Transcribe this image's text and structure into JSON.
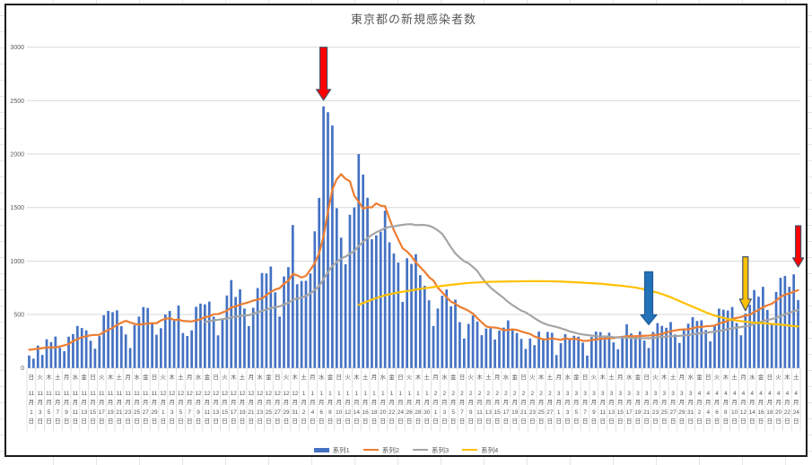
{
  "chart_data": {
    "type": "combo",
    "title": "東京都の新規感染者数",
    "legend_position": "bottom",
    "grid": true,
    "y_axis": {
      "min": 0,
      "max": 3000,
      "step": 500,
      "tick_labels": [
        "0",
        "500",
        "1000",
        "1500",
        "2000",
        "2500",
        "3000"
      ]
    },
    "x_axis": {
      "description": "daily categories 2020-11-01 through 2021-04-25, tick label every 2nd day",
      "month_suffix": "月",
      "day_suffix": "日",
      "labels": [
        [
          "日",
          11,
          1
        ],
        [
          "火",
          11,
          3
        ],
        [
          "木",
          11,
          5
        ],
        [
          "土",
          11,
          7
        ],
        [
          "月",
          11,
          9
        ],
        [
          "水",
          11,
          11
        ],
        [
          "金",
          11,
          13
        ],
        [
          "日",
          11,
          15
        ],
        [
          "火",
          11,
          17
        ],
        [
          "木",
          11,
          19
        ],
        [
          "土",
          11,
          21
        ],
        [
          "月",
          11,
          23
        ],
        [
          "水",
          11,
          25
        ],
        [
          "金",
          11,
          27
        ],
        [
          "日",
          11,
          29
        ],
        [
          "火",
          12,
          1
        ],
        [
          "木",
          12,
          3
        ],
        [
          "土",
          12,
          5
        ],
        [
          "月",
          12,
          7
        ],
        [
          "水",
          12,
          9
        ],
        [
          "金",
          12,
          11
        ],
        [
          "日",
          12,
          13
        ],
        [
          "火",
          12,
          15
        ],
        [
          "木",
          12,
          17
        ],
        [
          "土",
          12,
          19
        ],
        [
          "月",
          12,
          21
        ],
        [
          "水",
          12,
          23
        ],
        [
          "金",
          12,
          25
        ],
        [
          "日",
          12,
          27
        ],
        [
          "火",
          12,
          29
        ],
        [
          "木",
          12,
          31
        ],
        [
          "土",
          1,
          2
        ],
        [
          "月",
          1,
          4
        ],
        [
          "水",
          1,
          6
        ],
        [
          "金",
          1,
          8
        ],
        [
          "日",
          1,
          10
        ],
        [
          "火",
          1,
          12
        ],
        [
          "木",
          1,
          14
        ],
        [
          "土",
          1,
          16
        ],
        [
          "月",
          1,
          18
        ],
        [
          "水",
          1,
          20
        ],
        [
          "金",
          1,
          22
        ],
        [
          "日",
          1,
          24
        ],
        [
          "火",
          1,
          26
        ],
        [
          "木",
          1,
          28
        ],
        [
          "土",
          1,
          30
        ],
        [
          "月",
          2,
          1
        ],
        [
          "水",
          2,
          3
        ],
        [
          "金",
          2,
          5
        ],
        [
          "日",
          2,
          7
        ],
        [
          "火",
          2,
          9
        ],
        [
          "木",
          2,
          11
        ],
        [
          "土",
          2,
          13
        ],
        [
          "月",
          2,
          15
        ],
        [
          "水",
          2,
          17
        ],
        [
          "金",
          2,
          19
        ],
        [
          "日",
          2,
          21
        ],
        [
          "火",
          2,
          23
        ],
        [
          "木",
          2,
          25
        ],
        [
          "土",
          2,
          27
        ],
        [
          "月",
          3,
          1
        ],
        [
          "水",
          3,
          3
        ],
        [
          "金",
          3,
          5
        ],
        [
          "日",
          3,
          7
        ],
        [
          "火",
          3,
          9
        ],
        [
          "木",
          3,
          11
        ],
        [
          "土",
          3,
          13
        ],
        [
          "月",
          3,
          15
        ],
        [
          "水",
          3,
          17
        ],
        [
          "金",
          3,
          19
        ],
        [
          "日",
          3,
          21
        ],
        [
          "火",
          3,
          23
        ],
        [
          "木",
          3,
          25
        ],
        [
          "土",
          3,
          27
        ],
        [
          "月",
          3,
          29
        ],
        [
          "水",
          3,
          31
        ],
        [
          "金",
          4,
          2
        ],
        [
          "日",
          4,
          4
        ],
        [
          "火",
          4,
          6
        ],
        [
          "木",
          4,
          8
        ],
        [
          "土",
          4,
          10
        ],
        [
          "月",
          4,
          12
        ],
        [
          "水",
          4,
          14
        ],
        [
          "金",
          4,
          16
        ],
        [
          "日",
          4,
          18
        ],
        [
          "火",
          4,
          20
        ],
        [
          "木",
          4,
          22
        ],
        [
          "土",
          4,
          24
        ]
      ]
    },
    "series": [
      {
        "name": "系列1",
        "type": "bar",
        "color": "#4472C4",
        "values": [
          116,
          87,
          209,
          122,
          269,
          242,
          294,
          189,
          157,
          293,
          317,
          393,
          374,
          352,
          255,
          180,
          298,
          493,
          534,
          522,
          539,
          391,
          314,
          186,
          401,
          481,
          570,
          561,
          418,
          311,
          372,
          500,
          533,
          449,
          584,
          327,
          299,
          352,
          572,
          602,
          595,
          621,
          480,
          305,
          460,
          678,
          822,
          664,
          736,
          556,
          392,
          563,
          748,
          888,
          884,
          949,
          708,
          481,
          856,
          944,
          1337,
          783,
          814,
          816,
          884,
          1278,
          1591,
          2447,
          2392,
          2268,
          1494,
          1219,
          970,
          1433,
          1502,
          2001,
          1809,
          1592,
          1204,
          1240,
          1274,
          1471,
          1175,
          1070,
          986,
          618,
          1026,
          973,
          1064,
          868,
          769,
          633,
          393,
          556,
          676,
          734,
          577,
          639,
          429,
          276,
          412,
          491,
          434,
          307,
          369,
          371,
          266,
          350,
          378,
          445,
          353,
          327,
          272,
          178,
          275,
          213,
          340,
          270,
          337,
          329,
          121,
          232,
          316,
          279,
          301,
          293,
          237,
          116,
          290,
          340,
          335,
          304,
          330,
          239,
          175,
          300,
          409,
          323,
          303,
          342,
          256,
          187,
          337,
          420,
          394,
          376,
          430,
          313,
          234,
          364,
          414,
          475,
          440,
          446,
          355,
          249,
          399,
          555,
          545,
          537,
          570,
          421,
          306,
          510,
          591,
          729,
          667,
          759,
          543,
          405,
          711,
          843,
          861,
          759,
          876,
          635
        ]
      },
      {
        "name": "系列2",
        "type": "line",
        "color": "#ED7D31",
        "derived": "trailing_moving_average_of_series1",
        "window": 7,
        "lead_values": [
          170,
          175,
          181,
          186,
          190,
          193
        ]
      },
      {
        "name": "系列3",
        "type": "line",
        "color": "#A5A5A5",
        "derived": "trailing_moving_average_of_series1",
        "window": 28,
        "start_index": 40
      },
      {
        "name": "系列4",
        "type": "line",
        "color": "#FFC000",
        "points_index_value": [
          [
            75,
            590
          ],
          [
            78,
            640
          ],
          [
            81,
            680
          ],
          [
            84,
            706
          ],
          [
            87,
            726
          ],
          [
            90,
            746
          ],
          [
            93,
            762
          ],
          [
            96,
            778
          ],
          [
            100,
            795
          ],
          [
            105,
            806
          ],
          [
            110,
            810
          ],
          [
            115,
            812
          ],
          [
            120,
            810
          ],
          [
            125,
            800
          ],
          [
            130,
            788
          ],
          [
            135,
            768
          ],
          [
            138,
            752
          ],
          [
            141,
            728
          ],
          [
            144,
            692
          ],
          [
            146,
            662
          ],
          [
            148,
            626
          ],
          [
            150,
            590
          ],
          [
            152,
            556
          ],
          [
            154,
            520
          ],
          [
            156,
            490
          ],
          [
            158,
            468
          ],
          [
            160,
            450
          ],
          [
            162,
            438
          ],
          [
            164,
            428
          ],
          [
            166,
            421
          ],
          [
            168,
            416
          ],
          [
            170,
            409
          ],
          [
            172,
            401
          ],
          [
            174,
            392
          ],
          [
            175,
            388
          ]
        ]
      }
    ],
    "annotations": [
      {
        "shape": "down-arrow",
        "fill": "#FF0000",
        "stroke": "#44546A",
        "bar_index": 67,
        "from_value": 3000,
        "to_value": 2505,
        "width": 16,
        "shaft_width": 8,
        "head_height": 12
      },
      {
        "shape": "down-arrow",
        "fill": "#2272B9",
        "stroke": "#1F5C96",
        "bar_index": 141,
        "from_value": 900,
        "to_value": 405,
        "width": 18,
        "shaft_width": 9,
        "head_height": 11
      },
      {
        "shape": "down-arrow",
        "fill": "#FFC000",
        "stroke": "#44546A",
        "bar_index": 163,
        "from_value": 1040,
        "to_value": 535,
        "width": 13,
        "shaft_width": 6,
        "head_height": 13
      },
      {
        "shape": "down-arrow",
        "fill": "#FF0000",
        "stroke": "#44546A",
        "bar_index": 175,
        "from_value": 1330,
        "to_value": 945,
        "width": 12,
        "shaft_width": 6,
        "head_height": 10
      }
    ]
  }
}
